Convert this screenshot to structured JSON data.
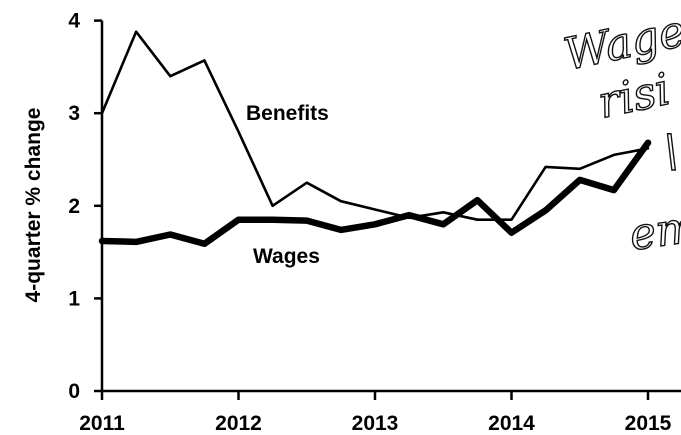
{
  "chart_data": {
    "type": "line",
    "title": "",
    "xlabel": "",
    "ylabel": "4-quarter % change",
    "xlim": [
      2011,
      2015.25
    ],
    "ylim": [
      0,
      4
    ],
    "grid": false,
    "x_ticks": [
      "2011",
      "2012",
      "2013",
      "2014",
      "2015"
    ],
    "y_ticks": [
      "0",
      "1",
      "2",
      "3",
      "4"
    ],
    "series": [
      {
        "name": "Benefits",
        "x": [
          2011.0,
          2011.25,
          2011.5,
          2011.75,
          2012.0,
          2012.25,
          2012.5,
          2012.75,
          2013.0,
          2013.25,
          2013.5,
          2013.75,
          2014.0,
          2014.25,
          2014.5,
          2014.75,
          2015.0
        ],
        "values": [
          3.0,
          3.88,
          3.4,
          3.57,
          2.8,
          2.0,
          2.25,
          2.05,
          1.96,
          1.87,
          1.93,
          1.85,
          1.85,
          2.42,
          2.4,
          2.55,
          2.62
        ],
        "line_width": "thin"
      },
      {
        "name": "Wages",
        "x": [
          2011.0,
          2011.25,
          2011.5,
          2011.75,
          2012.0,
          2012.25,
          2012.5,
          2012.75,
          2013.0,
          2013.25,
          2013.5,
          2013.75,
          2014.0,
          2014.25,
          2014.5,
          2014.75,
          2015.0
        ],
        "values": [
          1.62,
          1.61,
          1.69,
          1.59,
          1.85,
          1.85,
          1.84,
          1.74,
          1.8,
          1.9,
          1.8,
          2.06,
          1.71,
          1.95,
          2.28,
          2.17,
          2.68
        ],
        "line_width": "thick"
      }
    ],
    "annotations": [
      "Benefits",
      "Wages"
    ]
  },
  "handwriting": {
    "lines": [
      "Wage",
      "risi",
      "\\",
      "em"
    ]
  },
  "colors": {
    "line": "#000000",
    "background": "#ffffff"
  }
}
